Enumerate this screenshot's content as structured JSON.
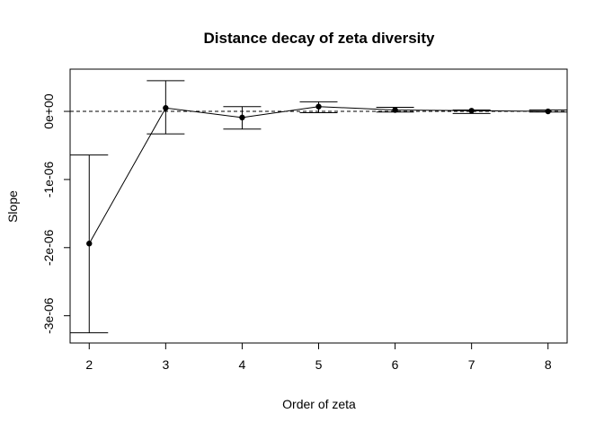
{
  "chart_data": {
    "type": "scatter",
    "title": "Distance decay of zeta diversity",
    "xlabel": "Order of zeta",
    "ylabel": "Slope",
    "xlim": [
      1.75,
      8.25
    ],
    "ylim": [
      -3.4e-06,
      6.2e-07
    ],
    "x_ticks": [
      2,
      3,
      4,
      5,
      6,
      7,
      8
    ],
    "y_ticks": [
      -3e-06,
      -2e-06,
      -1e-06,
      0
    ],
    "y_tick_labels": [
      "-3e-06",
      "-2e-06",
      "-1e-06",
      "0e+00"
    ],
    "reference_line": {
      "y": 0,
      "style": "dashed"
    },
    "series": [
      {
        "x": [
          2,
          3,
          4,
          5,
          6,
          7,
          8
        ],
        "values": [
          -1.94e-06,
          5e-08,
          -9e-08,
          7e-08,
          2e-08,
          1e-08,
          0
        ],
        "lower": [
          -3.25e-06,
          -3.3e-07,
          -2.6e-07,
          -2e-08,
          -1e-08,
          -3e-08,
          -1e-08
        ],
        "upper": [
          -6.4e-07,
          4.5e-07,
          7e-08,
          1.4e-07,
          6e-08,
          2e-08,
          2e-08
        ]
      }
    ],
    "grid": false,
    "legend": "none"
  }
}
